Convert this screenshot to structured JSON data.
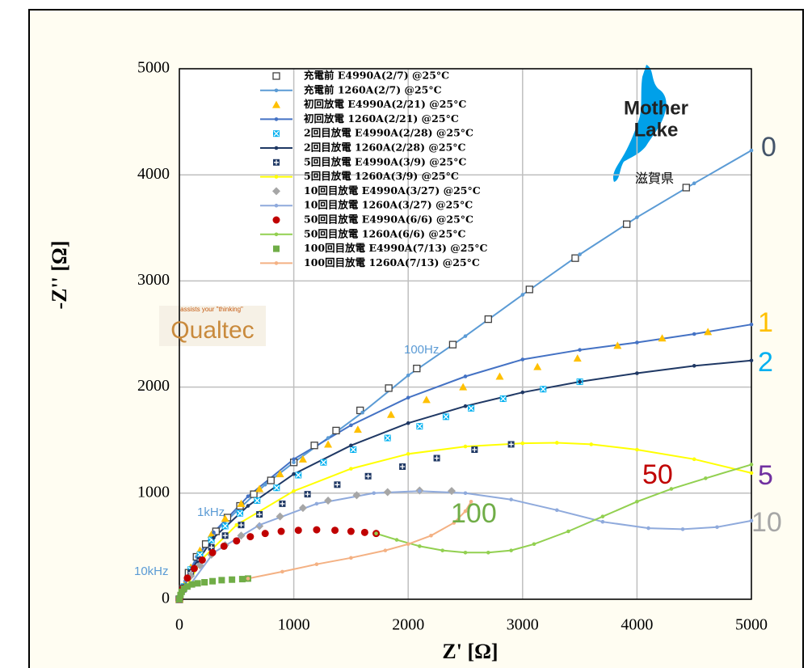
{
  "chart_data": {
    "type": "line",
    "x_label": "Z' [Ω]",
    "y_label": "-Z'' [Ω]",
    "xlim": [
      0,
      5000
    ],
    "ylim": [
      0,
      5000
    ],
    "xticks": [
      0,
      1000,
      2000,
      3000,
      4000,
      5000
    ],
    "yticks": [
      0,
      1000,
      2000,
      3000,
      4000,
      5000
    ],
    "grid": true,
    "legend": "top",
    "series": [
      {
        "name": "充電前 E4990A(2/7) @25°C",
        "color": "#404040",
        "marker": "square-open",
        "line": false,
        "x": [
          0,
          30,
          80,
          150,
          230,
          320,
          420,
          530,
          650,
          800,
          1000,
          1180,
          1370,
          1580,
          1830,
          2075,
          2390,
          2700,
          3060,
          3460,
          3910,
          4430
        ],
        "values": [
          0,
          100,
          250,
          400,
          520,
          640,
          770,
          880,
          990,
          1120,
          1290,
          1450,
          1590,
          1780,
          1990,
          2175,
          2400,
          2640,
          2920,
          3215,
          3535,
          3880
        ]
      },
      {
        "name": "充電前 1260A(2/7) @25°C",
        "color": "#5b9bd5",
        "marker": "dot",
        "line": true,
        "x": [
          0,
          50,
          150,
          300,
          500,
          750,
          1000,
          1300,
          1600,
          2000,
          2500,
          3000,
          3500,
          4000,
          4500,
          5000
        ],
        "values": [
          0,
          170,
          400,
          620,
          830,
          1080,
          1290,
          1520,
          1760,
          2110,
          2480,
          2870,
          3250,
          3600,
          3920,
          4230
        ]
      },
      {
        "name": "初回放電 E4990A(2/21) @25°C",
        "color": "#ffc000",
        "marker": "triangle",
        "line": false,
        "x": [
          0,
          40,
          100,
          180,
          280,
          400,
          540,
          700,
          880,
          1080,
          1300,
          1560,
          1850,
          2160,
          2480,
          2800,
          3130,
          3480,
          3830,
          4220,
          4620
        ],
        "values": [
          0,
          130,
          300,
          460,
          610,
          760,
          900,
          1040,
          1180,
          1320,
          1460,
          1600,
          1740,
          1880,
          2000,
          2100,
          2190,
          2270,
          2390,
          2460,
          2520
        ]
      },
      {
        "name": "初回放電 1260A(2/21) @25°C",
        "color": "#4472c4",
        "marker": "dot",
        "line": true,
        "x": [
          0,
          100,
          300,
          600,
          1000,
          1500,
          2000,
          2500,
          3000,
          3500,
          4000,
          4500,
          5000
        ],
        "values": [
          0,
          290,
          630,
          970,
          1320,
          1640,
          1900,
          2100,
          2260,
          2350,
          2420,
          2500,
          2590
        ]
      },
      {
        "name": "2回目放電 E4990A(2/28) @25°C",
        "color": "#00b0f0",
        "marker": "x-box",
        "line": false,
        "x": [
          0,
          40,
          100,
          180,
          280,
          400,
          530,
          680,
          850,
          1040,
          1260,
          1520,
          1820,
          2100,
          2330,
          2550,
          2830,
          3180,
          3500
        ],
        "values": [
          0,
          120,
          280,
          420,
          560,
          690,
          810,
          930,
          1050,
          1170,
          1290,
          1410,
          1520,
          1630,
          1720,
          1800,
          1890,
          1980,
          2050
        ]
      },
      {
        "name": "2回目放電 1260A(2/28) @25°C",
        "color": "#1f3864",
        "marker": "dot",
        "line": true,
        "x": [
          0,
          100,
          300,
          600,
          1000,
          1500,
          2000,
          2500,
          3000,
          3500,
          4000,
          4500,
          5000
        ],
        "values": [
          0,
          270,
          580,
          880,
          1180,
          1450,
          1660,
          1820,
          1950,
          2050,
          2130,
          2200,
          2250
        ]
      },
      {
        "name": "5回目放電 E4990A(3/9) @25°C",
        "color": "#1f3864",
        "marker": "plus-box",
        "line": false,
        "x": [
          0,
          40,
          100,
          180,
          280,
          400,
          540,
          700,
          900,
          1120,
          1380,
          1650,
          1950,
          2250,
          2580,
          2900
        ],
        "values": [
          0,
          110,
          250,
          370,
          490,
          600,
          700,
          800,
          900,
          990,
          1080,
          1160,
          1250,
          1330,
          1410,
          1460
        ]
      },
      {
        "name": "5回目放電 1260A(3/9) @25°C",
        "color": "#ffff00",
        "marker": "dot",
        "line": true,
        "x": [
          0,
          200,
          500,
          1000,
          1500,
          2000,
          2500,
          3000,
          3300,
          3600,
          4000,
          4500,
          5000
        ],
        "values": [
          0,
          380,
          700,
          1020,
          1230,
          1370,
          1440,
          1470,
          1475,
          1460,
          1410,
          1320,
          1190
        ]
      },
      {
        "name": "10回目放電 E4990A(3/27) @25°C",
        "color": "#a6a6a6",
        "marker": "diamond",
        "line": false,
        "x": [
          0,
          40,
          100,
          180,
          280,
          400,
          540,
          700,
          880,
          1080,
          1300,
          1550,
          1820,
          2100,
          2380
        ],
        "values": [
          0,
          100,
          220,
          320,
          420,
          510,
          600,
          690,
          780,
          860,
          930,
          980,
          1010,
          1025,
          1020
        ]
      },
      {
        "name": "10回目放電 1260A(3/27) @25°C",
        "color": "#8faadc",
        "marker": "dot",
        "line": true,
        "x": [
          0,
          300,
          700,
          1200,
          1700,
          2100,
          2500,
          2900,
          3300,
          3700,
          4100,
          4400,
          4700,
          5000
        ],
        "values": [
          0,
          440,
          700,
          900,
          1000,
          1020,
          1000,
          940,
          840,
          730,
          670,
          660,
          680,
          740
        ]
      },
      {
        "name": "50回目放電 E4990A(6/6) @25°C",
        "color": "#c00000",
        "marker": "circle",
        "line": false,
        "x": [
          0,
          30,
          70,
          130,
          200,
          290,
          390,
          500,
          620,
          750,
          890,
          1040,
          1200,
          1360,
          1500,
          1620,
          1720
        ],
        "values": [
          0,
          100,
          200,
          290,
          370,
          440,
          500,
          550,
          590,
          620,
          640,
          650,
          655,
          650,
          640,
          630,
          620
        ]
      },
      {
        "name": "50回目放電 1260A(6/6) @25°C",
        "color": "#92d050",
        "marker": "dot",
        "line": true,
        "x": [
          1720,
          1900,
          2100,
          2300,
          2500,
          2700,
          2900,
          3100,
          3400,
          3700,
          4000,
          4300,
          4600,
          5000
        ],
        "values": [
          620,
          560,
          500,
          460,
          440,
          440,
          460,
          520,
          640,
          780,
          920,
          1040,
          1140,
          1270
        ]
      },
      {
        "name": "100回目放電 E4990A(7/13) @25°C",
        "color": "#70ad47",
        "marker": "square",
        "line": false,
        "x": [
          0,
          10,
          20,
          40,
          70,
          110,
          160,
          220,
          290,
          370,
          460,
          550,
          600
        ],
        "values": [
          0,
          40,
          70,
          100,
          120,
          140,
          150,
          160,
          170,
          180,
          185,
          190,
          195
        ]
      },
      {
        "name": "100回目放電 1260A(7/13) @25°C",
        "color": "#f4b183",
        "marker": "dot",
        "line": true,
        "x": [
          600,
          900,
          1200,
          1500,
          1800,
          2000,
          2200,
          2400,
          2500,
          2550
        ],
        "values": [
          195,
          260,
          330,
          390,
          460,
          520,
          600,
          720,
          830,
          920
        ]
      }
    ],
    "annotations": [
      {
        "text": "100Hz",
        "color": "#5b9bd5"
      },
      {
        "text": "1kHz",
        "color": "#5b9bd5"
      },
      {
        "text": "10kHz",
        "color": "#5b9bd5"
      },
      {
        "text": "0",
        "color": "#44546a"
      },
      {
        "text": "1",
        "color": "#ffc000"
      },
      {
        "text": "2",
        "color": "#00b0f0"
      },
      {
        "text": "5",
        "color": "#7030a0"
      },
      {
        "text": "10",
        "color": "#a6a6a6"
      },
      {
        "text": "50",
        "color": "#c00000"
      },
      {
        "text": "100",
        "color": "#70ad47"
      },
      {
        "text": "Mother",
        "color": "#222222"
      },
      {
        "text": "Lake",
        "color": "#222222"
      },
      {
        "text": "滋賀県",
        "color": "#000000"
      },
      {
        "text": "assists your \"thinking\"",
        "color": "#c55a11"
      },
      {
        "text": "Qualtec",
        "color": "#c98a3c"
      }
    ]
  }
}
